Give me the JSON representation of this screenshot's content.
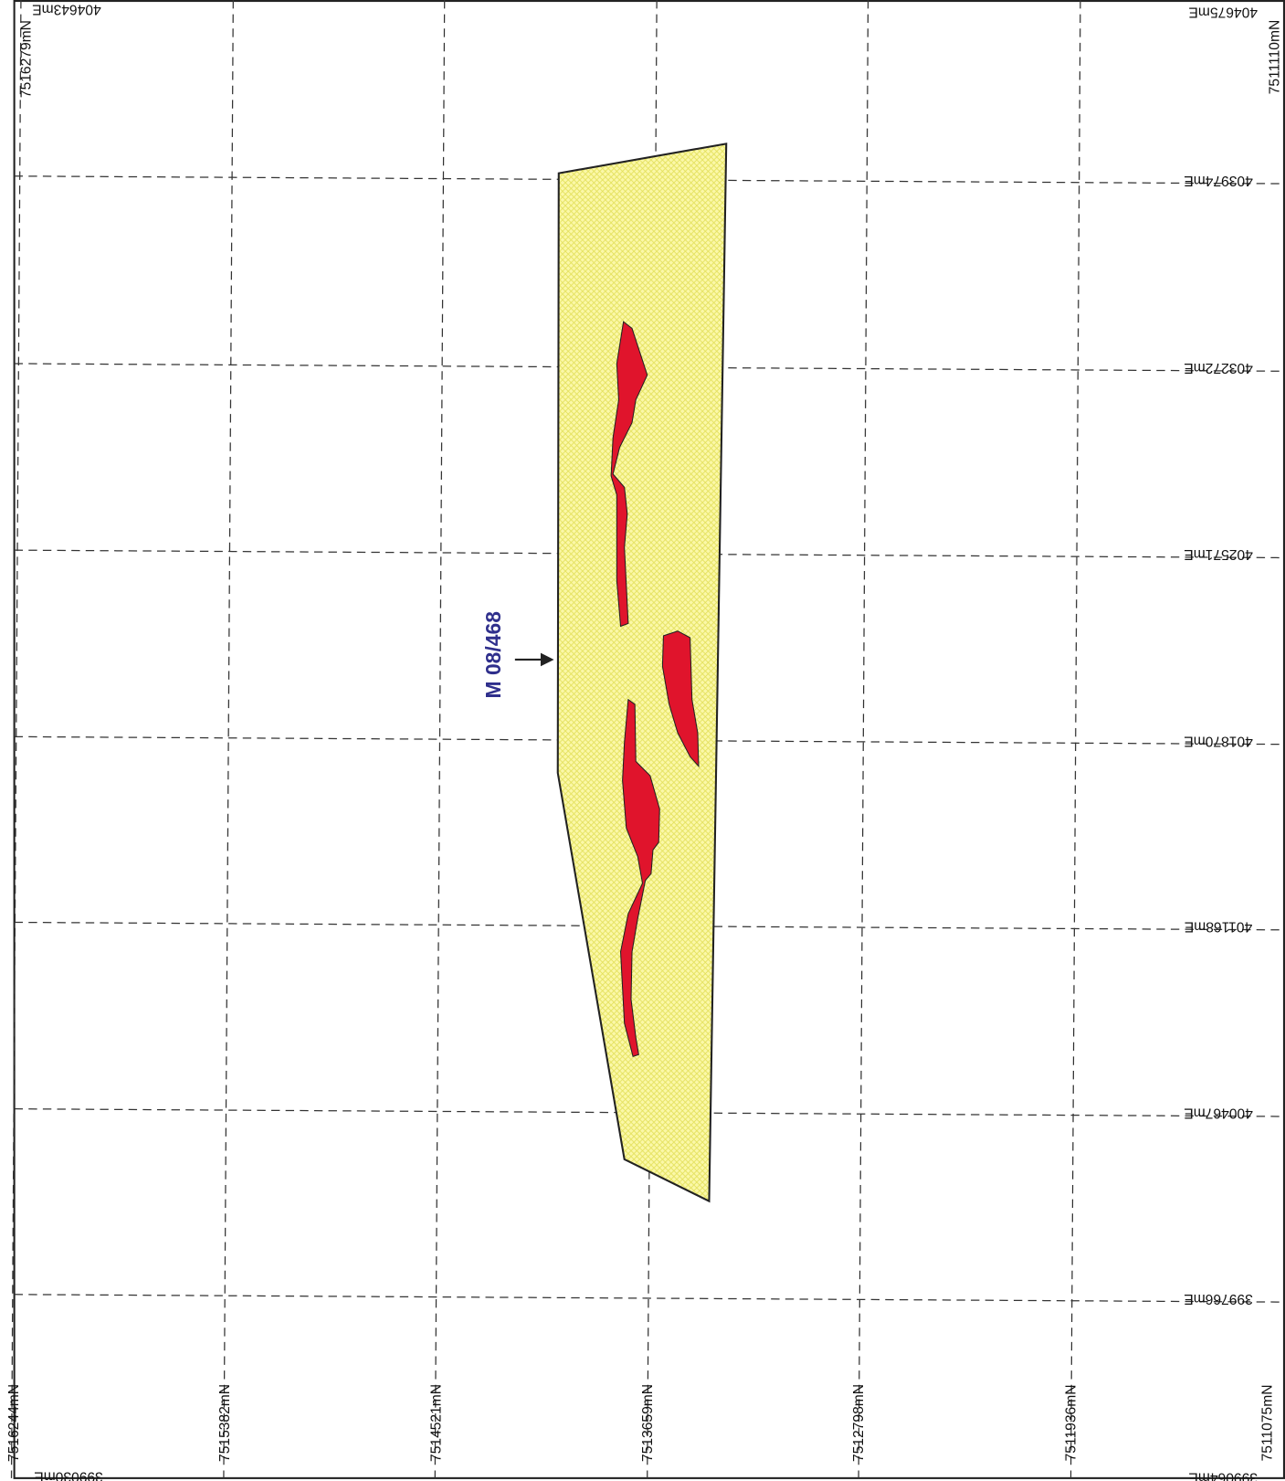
{
  "map": {
    "tenement_label": "M 08/468",
    "corners": {
      "top_left_easting": "404643mE",
      "top_left_northing": "7516279mN",
      "top_right_easting": "404675mE",
      "top_right_northing": "7511110mN",
      "bottom_left_easting": "399030mE",
      "bottom_right_easting": "399064mE"
    },
    "eastings": [
      "403974mE",
      "403272mE",
      "402571mE",
      "401870mE",
      "401168mE",
      "400467mE",
      "399766mE"
    ],
    "northings": [
      "7516244mN",
      "7515382mN",
      "7514521mN",
      "7513659mN",
      "7512798mN",
      "7511936mN",
      "7511075mN"
    ]
  }
}
